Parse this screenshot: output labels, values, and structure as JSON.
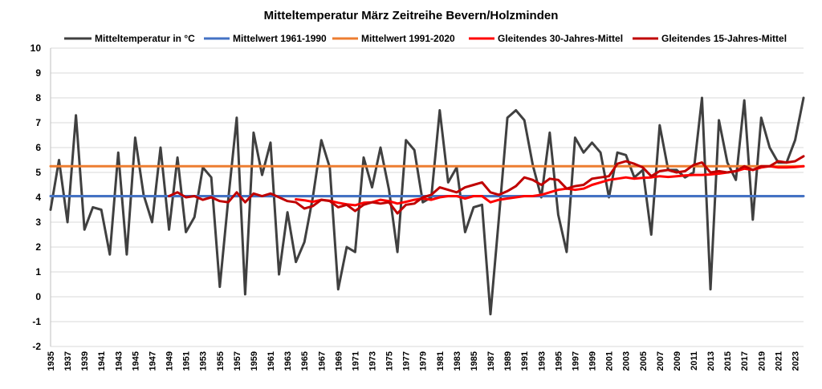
{
  "chart_data": {
    "type": "line",
    "title": "Mitteltemperatur März Zeitreihe Bevern/Holzminden",
    "xlabel": "",
    "ylabel": "",
    "ylim": [
      -2,
      10
    ],
    "yticks": [
      -2,
      -1,
      0,
      1,
      2,
      3,
      4,
      5,
      6,
      7,
      8,
      9,
      10
    ],
    "xlim": [
      1935,
      2024
    ],
    "xticks": [
      1935,
      1937,
      1939,
      1941,
      1943,
      1945,
      1947,
      1949,
      1951,
      1953,
      1955,
      1957,
      1959,
      1961,
      1963,
      1965,
      1967,
      1969,
      1971,
      1973,
      1975,
      1977,
      1979,
      1981,
      1983,
      1985,
      1987,
      1989,
      1991,
      1993,
      1995,
      1997,
      1999,
      2001,
      2003,
      2005,
      2007,
      2009,
      2011,
      2013,
      2015,
      2017,
      2019,
      2021,
      2023
    ],
    "grid": "horizontal",
    "legend_position": "top",
    "series": [
      {
        "name": "Mitteltemperatur in °C",
        "color": "#404040",
        "x": [
          1935,
          1936,
          1937,
          1938,
          1939,
          1940,
          1941,
          1942,
          1943,
          1944,
          1945,
          1946,
          1947,
          1948,
          1949,
          1950,
          1951,
          1952,
          1953,
          1954,
          1955,
          1956,
          1957,
          1958,
          1959,
          1960,
          1961,
          1962,
          1963,
          1964,
          1965,
          1966,
          1967,
          1968,
          1969,
          1970,
          1971,
          1972,
          1973,
          1974,
          1975,
          1976,
          1977,
          1978,
          1979,
          1980,
          1981,
          1982,
          1983,
          1984,
          1985,
          1986,
          1987,
          1988,
          1989,
          1990,
          1991,
          1992,
          1993,
          1994,
          1995,
          1996,
          1997,
          1998,
          1999,
          2000,
          2001,
          2002,
          2003,
          2004,
          2005,
          2006,
          2007,
          2008,
          2009,
          2010,
          2011,
          2012,
          2013,
          2014,
          2015,
          2016,
          2017,
          2018,
          2019,
          2020,
          2021,
          2022,
          2023,
          2024
        ],
        "values": [
          3.5,
          5.5,
          3.0,
          7.3,
          2.7,
          3.6,
          3.5,
          1.7,
          5.8,
          1.7,
          6.4,
          4.1,
          3.0,
          6.0,
          2.7,
          5.6,
          2.6,
          3.2,
          5.2,
          4.8,
          0.4,
          3.9,
          7.2,
          0.1,
          6.6,
          4.9,
          6.2,
          0.9,
          3.4,
          1.4,
          2.2,
          4.0,
          6.3,
          5.2,
          0.3,
          2.0,
          1.8,
          5.6,
          4.4,
          6.0,
          4.3,
          1.8,
          6.3,
          5.9,
          3.8,
          4.0,
          7.5,
          4.6,
          5.2,
          2.6,
          3.6,
          3.7,
          -0.7,
          3.2,
          7.2,
          7.5,
          7.1,
          5.3,
          4.0,
          6.6,
          3.3,
          1.8,
          6.4,
          5.8,
          6.2,
          5.8,
          4.0,
          5.8,
          5.7,
          4.8,
          5.1,
          2.5,
          6.9,
          5.1,
          5.1,
          4.8,
          5.0,
          8.0,
          0.3,
          7.1,
          5.4,
          4.7,
          7.9,
          3.1,
          7.2,
          6.0,
          5.4,
          5.4,
          6.3,
          8.0
        ]
      },
      {
        "name": "Mittelwert 1961-1990",
        "color": "#4472C4",
        "x": [
          1935,
          2024
        ],
        "values": [
          4.05,
          4.05
        ]
      },
      {
        "name": "Mittelwert 1991-2020",
        "color": "#ED7D31",
        "x": [
          1935,
          2024
        ],
        "values": [
          5.25,
          5.25
        ]
      },
      {
        "name": "Gleitendes 30-Jahres-Mittel",
        "color": "#FF0000",
        "x": [
          1964,
          1965,
          1966,
          1967,
          1968,
          1969,
          1970,
          1971,
          1972,
          1973,
          1974,
          1975,
          1976,
          1977,
          1978,
          1979,
          1980,
          1981,
          1982,
          1983,
          1984,
          1985,
          1986,
          1987,
          1988,
          1989,
          1990,
          1991,
          1992,
          1993,
          1994,
          1995,
          1996,
          1997,
          1998,
          1999,
          2000,
          2001,
          2002,
          2003,
          2004,
          2005,
          2006,
          2007,
          2008,
          2009,
          2010,
          2011,
          2012,
          2013,
          2014,
          2015,
          2016,
          2017,
          2018,
          2019,
          2020,
          2021,
          2022,
          2023,
          2024
        ],
        "values": [
          3.92,
          3.88,
          3.82,
          3.9,
          3.86,
          3.78,
          3.72,
          3.68,
          3.78,
          3.8,
          3.9,
          3.85,
          3.75,
          3.82,
          3.9,
          3.95,
          3.9,
          4.0,
          4.05,
          4.05,
          3.95,
          4.05,
          4.05,
          3.8,
          3.9,
          3.95,
          4.0,
          4.05,
          4.05,
          4.1,
          4.2,
          4.3,
          4.35,
          4.3,
          4.35,
          4.5,
          4.6,
          4.7,
          4.75,
          4.8,
          4.75,
          4.78,
          4.8,
          4.85,
          4.82,
          4.85,
          4.88,
          4.9,
          4.9,
          4.92,
          4.95,
          5.0,
          5.05,
          5.15,
          5.1,
          5.2,
          5.25,
          5.2,
          5.2,
          5.22,
          5.25
        ]
      },
      {
        "name": "Gleitendes 15-Jahres-Mittel",
        "color": "#C00000",
        "x": [
          1949,
          1950,
          1951,
          1952,
          1953,
          1954,
          1955,
          1956,
          1957,
          1958,
          1959,
          1960,
          1961,
          1962,
          1963,
          1964,
          1965,
          1966,
          1967,
          1968,
          1969,
          1970,
          1971,
          1972,
          1973,
          1974,
          1975,
          1976,
          1977,
          1978,
          1979,
          1980,
          1981,
          1982,
          1983,
          1984,
          1985,
          1986,
          1987,
          1988,
          1989,
          1990,
          1991,
          1992,
          1993,
          1994,
          1995,
          1996,
          1997,
          1998,
          1999,
          2000,
          2001,
          2002,
          2003,
          2004,
          2005,
          2006,
          2007,
          2008,
          2009,
          2010,
          2011,
          2012,
          2013,
          2014,
          2015,
          2016,
          2017,
          2018,
          2019,
          2020,
          2021,
          2022,
          2023,
          2024
        ],
        "values": [
          4.05,
          4.2,
          4.0,
          4.05,
          3.9,
          4.0,
          3.85,
          3.8,
          4.2,
          3.8,
          4.15,
          4.05,
          4.15,
          4.0,
          3.85,
          3.8,
          3.55,
          3.65,
          3.9,
          3.85,
          3.6,
          3.7,
          3.45,
          3.7,
          3.8,
          3.75,
          3.8,
          3.35,
          3.7,
          3.75,
          4.0,
          4.1,
          4.4,
          4.3,
          4.2,
          4.4,
          4.5,
          4.6,
          4.2,
          4.1,
          4.25,
          4.45,
          4.8,
          4.7,
          4.5,
          4.75,
          4.7,
          4.35,
          4.45,
          4.5,
          4.75,
          4.8,
          4.85,
          5.35,
          5.45,
          5.35,
          5.2,
          4.85,
          5.05,
          5.1,
          5.0,
          5.05,
          5.3,
          5.4,
          5.0,
          5.05,
          5.0,
          5.05,
          5.25,
          5.1,
          5.25,
          5.25,
          5.45,
          5.4,
          5.45,
          5.65
        ]
      }
    ]
  }
}
